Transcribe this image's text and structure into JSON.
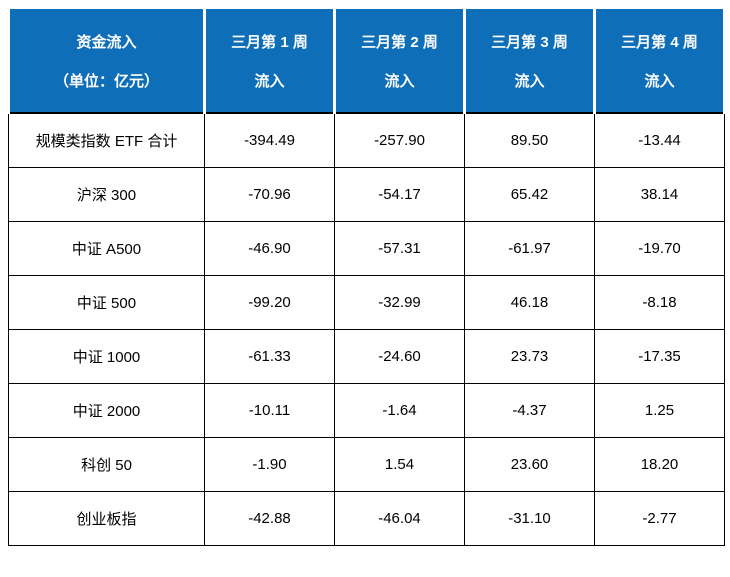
{
  "chart_data": {
    "type": "table",
    "title": "资金流入",
    "unit_label": "（单位：亿元）",
    "columns": [
      {
        "line1": "三月第 1 周",
        "line2": "流入"
      },
      {
        "line1": "三月第 2 周",
        "line2": "流入"
      },
      {
        "line1": "三月第 3 周",
        "line2": "流入"
      },
      {
        "line1": "三月第 4 周",
        "line2": "流入"
      }
    ],
    "rows": [
      {
        "label": "规模类指数 ETF 合计",
        "values": [
          "-394.49",
          "-257.90",
          "89.50",
          "-13.44"
        ]
      },
      {
        "label": "沪深 300",
        "values": [
          "-70.96",
          "-54.17",
          "65.42",
          "38.14"
        ]
      },
      {
        "label": "中证 A500",
        "values": [
          "-46.90",
          "-57.31",
          "-61.97",
          "-19.70"
        ]
      },
      {
        "label": "中证 500",
        "values": [
          "-99.20",
          "-32.99",
          "46.18",
          "-8.18"
        ]
      },
      {
        "label": "中证 1000",
        "values": [
          "-61.33",
          "-24.60",
          "23.73",
          "-17.35"
        ]
      },
      {
        "label": "中证 2000",
        "values": [
          "-10.11",
          "-1.64",
          "-4.37",
          "1.25"
        ]
      },
      {
        "label": "科创 50",
        "values": [
          "-1.90",
          "1.54",
          "23.60",
          "18.20"
        ]
      },
      {
        "label": "创业板指",
        "values": [
          "-42.88",
          "-46.04",
          "-31.10",
          "-2.77"
        ]
      }
    ],
    "colors": {
      "header_bg": "#0e6eb8",
      "header_text": "#ffffff",
      "body_text": "#000000",
      "border": "#000000"
    }
  }
}
